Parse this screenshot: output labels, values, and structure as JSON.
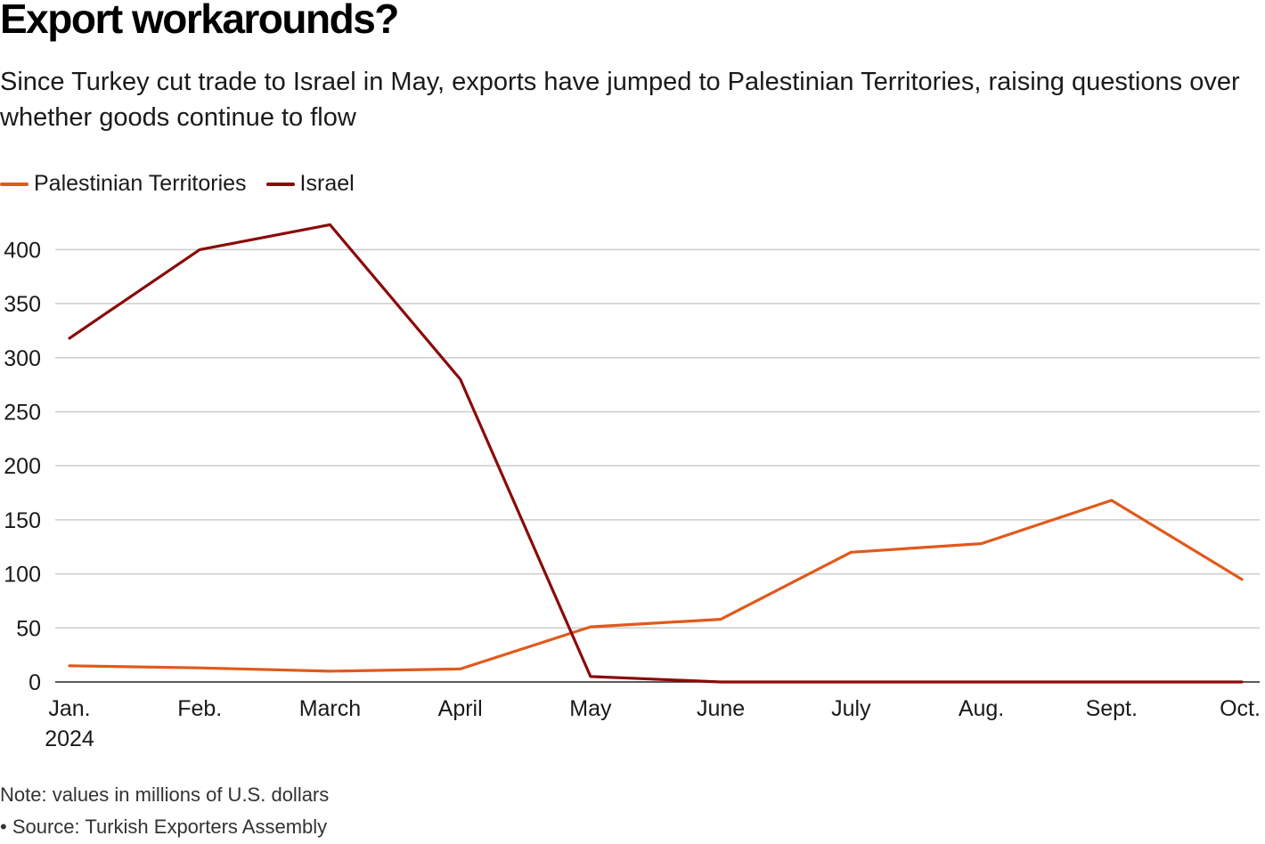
{
  "colors": {
    "palestinian": "#e05a1c",
    "israel": "#8b0a0a",
    "grid": "#cccccc",
    "axis": "#222222"
  },
  "chart_data": {
    "type": "line",
    "title": "Export workarounds?",
    "subtitle": "Since Turkey cut trade to Israel in May, exports have jumped to Palestinian Territories, raising questions over whether goods continue to flow",
    "categories": [
      "Jan.",
      "Feb.",
      "March",
      "April",
      "May",
      "June",
      "July",
      "Aug.",
      "Sept.",
      "Oct."
    ],
    "year_label": "2024",
    "series": [
      {
        "name": "Palestinian Territories",
        "color": "#e05a1c",
        "values": [
          15,
          13,
          10,
          12,
          51,
          58,
          120,
          128,
          168,
          95
        ]
      },
      {
        "name": "Israel",
        "color": "#8b0a0a",
        "values": [
          318,
          400,
          423,
          280,
          5,
          0,
          0,
          0,
          0,
          0
        ]
      }
    ],
    "yticks": [
      0,
      50,
      100,
      150,
      200,
      250,
      300,
      350,
      400
    ],
    "ylim": [
      0,
      425
    ],
    "xlabel": "",
    "ylabel": "",
    "grid": true,
    "legend_position": "top-left"
  },
  "footer": {
    "note": "Note: values in millions of U.S. dollars",
    "source": "• Source: Turkish Exporters Assembly"
  }
}
